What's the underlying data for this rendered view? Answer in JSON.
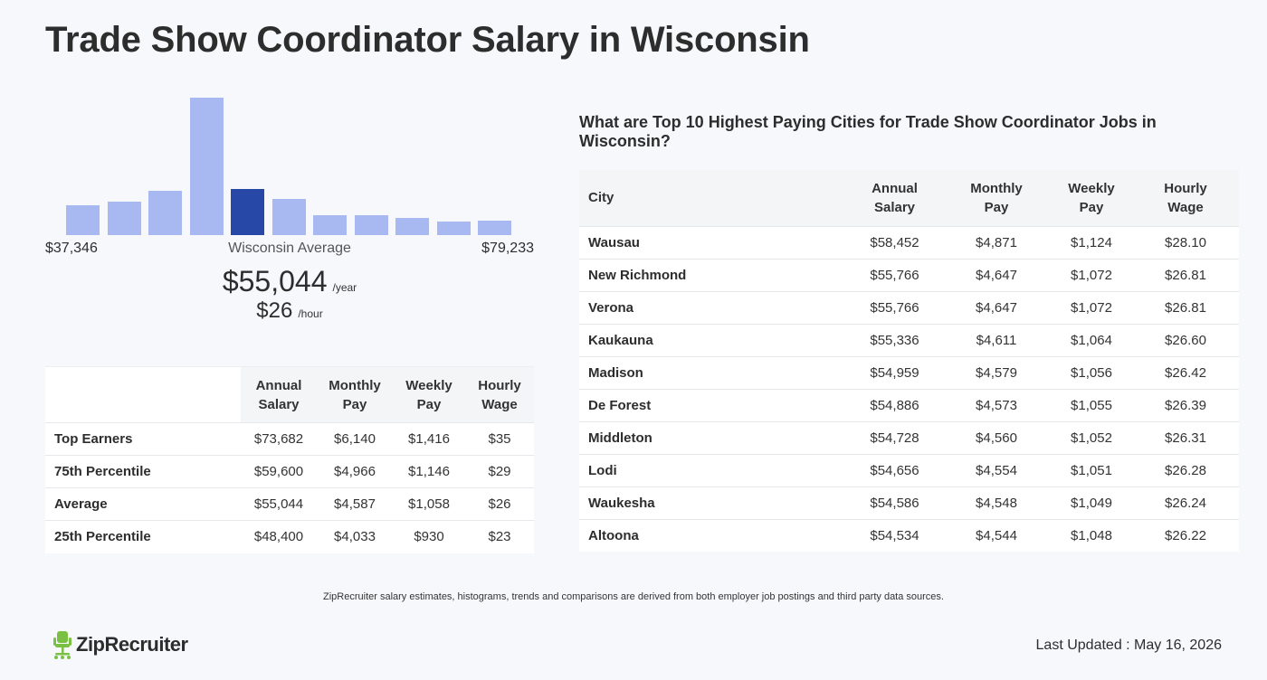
{
  "title": "Trade Show Coordinator Salary in Wisconsin",
  "colors": {
    "bar": "#a8b8f0",
    "bar_highlight": "#2748a6",
    "logo_green": "#7ac143"
  },
  "chart_data": {
    "type": "bar",
    "values": [
      33,
      37,
      49,
      152,
      51,
      40,
      22,
      22,
      19,
      15,
      16
    ],
    "highlight_index": 4,
    "range_min": "$37,346",
    "range_max": "$79,233"
  },
  "summary": {
    "average_label": "Wisconsin Average",
    "annual": "$55,044",
    "annual_unit": "/year",
    "hourly": "$26",
    "hourly_unit": "/hour"
  },
  "percentile_table": {
    "headers": [
      "Annual Salary",
      "Monthly Pay",
      "Weekly Pay",
      "Hourly Wage"
    ],
    "rows": [
      {
        "label": "Top Earners",
        "annual": "$73,682",
        "monthly": "$6,140",
        "weekly": "$1,416",
        "hourly": "$35"
      },
      {
        "label": "75th Percentile",
        "annual": "$59,600",
        "monthly": "$4,966",
        "weekly": "$1,146",
        "hourly": "$29"
      },
      {
        "label": "Average",
        "annual": "$55,044",
        "monthly": "$4,587",
        "weekly": "$1,058",
        "hourly": "$26"
      },
      {
        "label": "25th Percentile",
        "annual": "$48,400",
        "monthly": "$4,033",
        "weekly": "$930",
        "hourly": "$23"
      }
    ]
  },
  "cities": {
    "heading": "What are Top 10 Highest Paying Cities for Trade Show Coordinator Jobs in Wisconsin?",
    "headers": [
      "City",
      "Annual Salary",
      "Monthly Pay",
      "Weekly Pay",
      "Hourly Wage"
    ],
    "rows": [
      {
        "city": "Wausau",
        "annual": "$58,452",
        "monthly": "$4,871",
        "weekly": "$1,124",
        "hourly": "$28.10"
      },
      {
        "city": "New Richmond",
        "annual": "$55,766",
        "monthly": "$4,647",
        "weekly": "$1,072",
        "hourly": "$26.81"
      },
      {
        "city": "Verona",
        "annual": "$55,766",
        "monthly": "$4,647",
        "weekly": "$1,072",
        "hourly": "$26.81"
      },
      {
        "city": "Kaukauna",
        "annual": "$55,336",
        "monthly": "$4,611",
        "weekly": "$1,064",
        "hourly": "$26.60"
      },
      {
        "city": "Madison",
        "annual": "$54,959",
        "monthly": "$4,579",
        "weekly": "$1,056",
        "hourly": "$26.42"
      },
      {
        "city": "De Forest",
        "annual": "$54,886",
        "monthly": "$4,573",
        "weekly": "$1,055",
        "hourly": "$26.39"
      },
      {
        "city": "Middleton",
        "annual": "$54,728",
        "monthly": "$4,560",
        "weekly": "$1,052",
        "hourly": "$26.31"
      },
      {
        "city": "Lodi",
        "annual": "$54,656",
        "monthly": "$4,554",
        "weekly": "$1,051",
        "hourly": "$26.28"
      },
      {
        "city": "Waukesha",
        "annual": "$54,586",
        "monthly": "$4,548",
        "weekly": "$1,049",
        "hourly": "$26.24"
      },
      {
        "city": "Altoona",
        "annual": "$54,534",
        "monthly": "$4,544",
        "weekly": "$1,048",
        "hourly": "$26.22"
      }
    ]
  },
  "footer": {
    "disclaimer": "ZipRecruiter salary estimates, histograms, trends and comparisons are derived from both employer job postings and third party data sources.",
    "logo_text": "ZipRecruiter",
    "logo_icon": "ziprecruiter-chair-icon",
    "last_updated": "Last Updated : May 16, 2026"
  }
}
